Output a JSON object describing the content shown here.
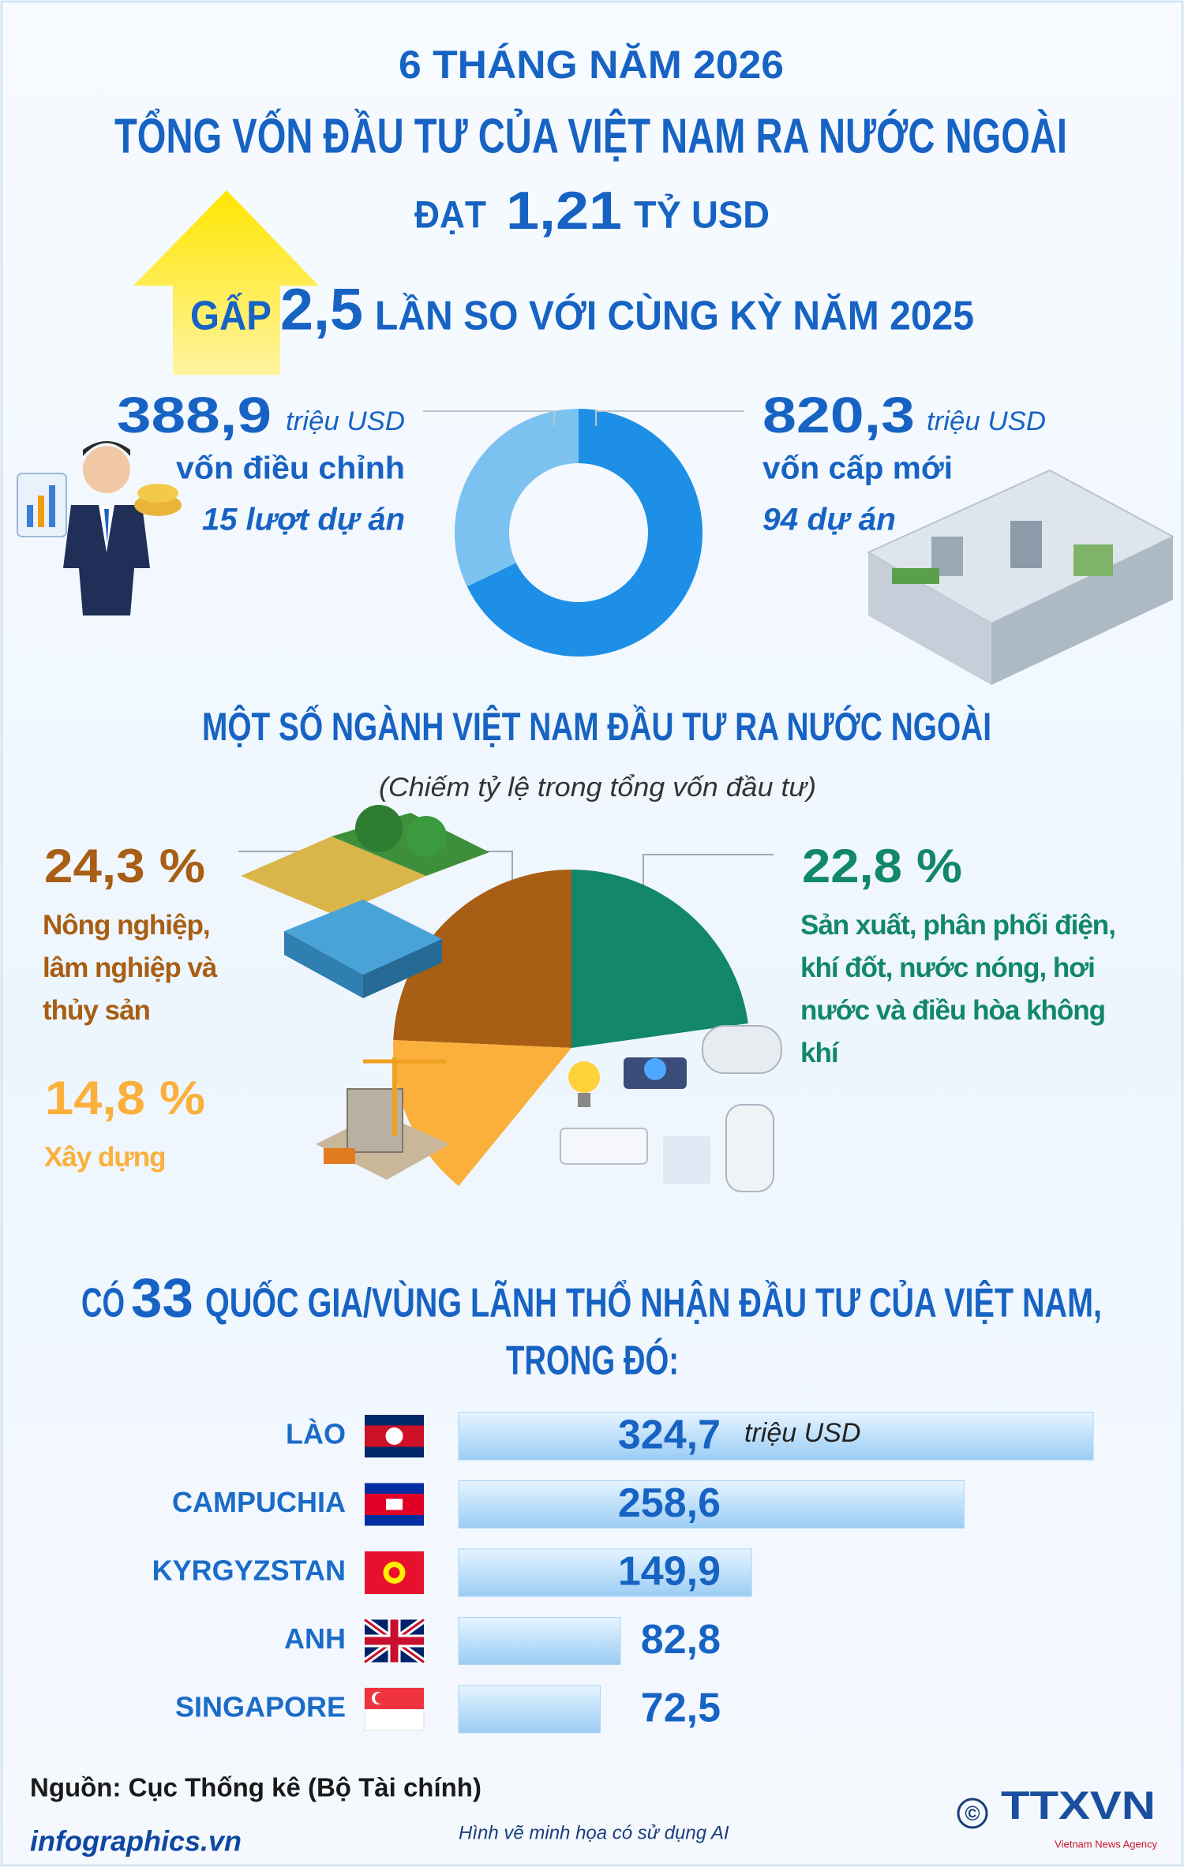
{
  "header": {
    "period": "6 THÁNG NĂM 2026",
    "title": "TỔNG VỐN ĐẦU TƯ CỦA VIỆT NAM RA NƯỚC NGOÀI",
    "total_prefix": "ĐẠT",
    "total_value": "1,21",
    "total_unit": "TỶ USD",
    "growth_prefix": "GẤP",
    "growth_value": "2,5",
    "growth_text": "LẦN SO VỚI CÙNG KỲ NĂM 2025"
  },
  "chart_data": [
    {
      "type": "donut",
      "categories": [
        "vốn điều chỉnh",
        "vốn cấp mới"
      ],
      "values": [
        388.9,
        820.3
      ],
      "value_labels": [
        "388,9",
        "820,3"
      ],
      "unit": "triệu USD",
      "details": [
        "15 lượt dự án",
        "94 dự án"
      ],
      "colors": [
        "#7cc2f0",
        "#1e8fe6"
      ]
    },
    {
      "type": "pie",
      "title": "MỘT SỐ NGÀNH VIỆT NAM ĐẦU TƯ RA NƯỚC NGOÀI",
      "subtitle": "(Chiếm tỷ lệ trong tổng vốn đầu tư)",
      "categories": [
        "Nông nghiệp, lâm nghiệp và thủy sản",
        "Sản xuất, phân phối điện, khí đốt, nước nóng, hơi nước và điều hòa không khí",
        "Xây dựng"
      ],
      "values": [
        24.3,
        22.8,
        14.8
      ],
      "value_labels": [
        "24,3 %",
        "22,8 %",
        "14,8 %"
      ],
      "colors": [
        "#a85e14",
        "#12876a",
        "#fbb03b"
      ]
    },
    {
      "type": "hbar",
      "title_prefix": "CÓ",
      "title_number": "33",
      "title": "QUỐC GIA/VÙNG LÃNH THỔ NHẬN ĐẦU TƯ CỦA VIỆT NAM,",
      "title_line2": "TRONG ĐÓ:",
      "categories": [
        "LÀO",
        "CAMPUCHIA",
        "KYRGYZSTAN",
        "ANH",
        "SINGAPORE"
      ],
      "values": [
        324.7,
        258.6,
        149.9,
        82.8,
        72.5
      ],
      "value_labels": [
        "324,7",
        "258,6",
        "149,9",
        "82,8",
        "72,5"
      ],
      "unit": "triệu USD",
      "color": "#a9d4f7"
    }
  ],
  "footer": {
    "source": "Nguồn: Cục Thống kê (Bộ Tài chính)",
    "website": "infographics.vn",
    "note": "Hình vẽ minh họa có sử dụng AI",
    "copyright": "©",
    "logo": "TTXVN",
    "agency": "Vietnam News Agency"
  }
}
